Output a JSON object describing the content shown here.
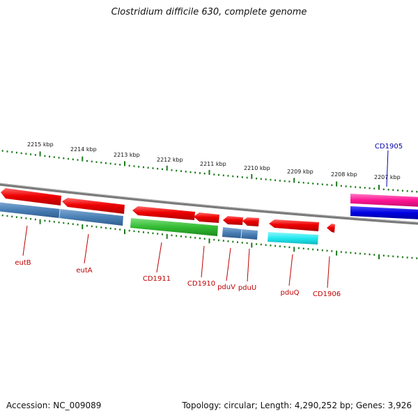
{
  "title": "Clostridium difficile 630, complete genome",
  "footer": {
    "accession": "Accession: NC_009089",
    "summary": "Topology: circular; Length: 4,290,252 bp; Genes: 3,926"
  },
  "colors": {
    "backbone": "#7a7a7a",
    "tick": "#1a7a1a",
    "label_red": "#c00000",
    "label_blue": "#0000aa"
  },
  "kbp_labels": [
    "2215 kbp",
    "2214 kbp",
    "2213 kbp",
    "2212 kbp",
    "2211 kbp",
    "2210 kbp",
    "2209 kbp",
    "2208 kbp",
    "2207 kbp"
  ],
  "genes": [
    {
      "label": "eutB",
      "color": "#e00000",
      "strand": "minus",
      "lane_color": "#4a7fb5"
    },
    {
      "label": "eutA",
      "color": "#e00000",
      "strand": "minus",
      "lane_color": "#4a7fb5"
    },
    {
      "label": "CD1911",
      "color": "#e00000",
      "strand": "minus",
      "lane_color": "#33bb33"
    },
    {
      "label": "CD1910",
      "color": "#e00000",
      "strand": "minus",
      "lane_color": ""
    },
    {
      "label": "pduV",
      "color": "#e00000",
      "strand": "minus",
      "lane_color": "#4a7fb5"
    },
    {
      "label": "pduU",
      "color": "#e00000",
      "strand": "minus",
      "lane_color": "#4a7fb5"
    },
    {
      "label": "pduQ",
      "color": "#e00000",
      "strand": "minus",
      "lane_color": "#22e8f0"
    },
    {
      "label": "CD1906",
      "color": "#e00000",
      "strand": "minus",
      "lane_color": ""
    },
    {
      "label": "CD1905",
      "color": "#ff1493",
      "strand": "plus",
      "lane_color": "#0000e0"
    }
  ]
}
